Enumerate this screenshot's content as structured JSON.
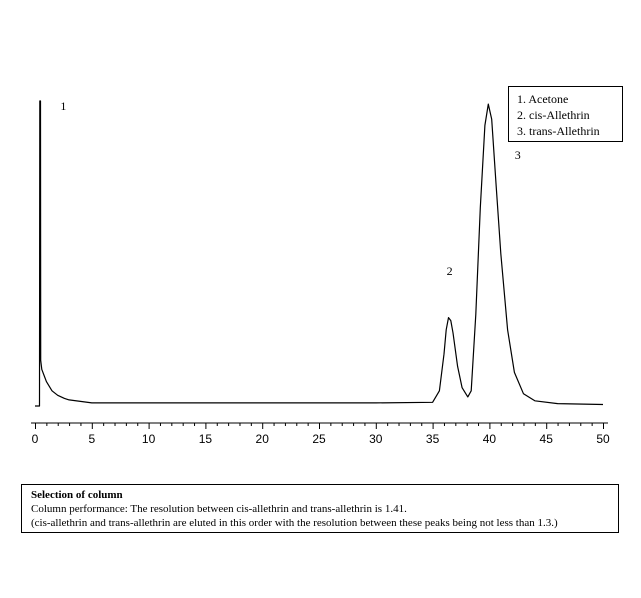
{
  "chart_data": {
    "type": "line",
    "title": "",
    "xlabel": "",
    "ylabel": "",
    "xlim": [
      0,
      50
    ],
    "ylim": [
      0,
      1
    ],
    "x_ticks": [
      0,
      5,
      10,
      15,
      20,
      25,
      30,
      35,
      40,
      45,
      50
    ],
    "grid": false,
    "series": [
      {
        "values": [
          [
            0.0,
            0.0
          ],
          [
            0.4,
            0.0
          ],
          [
            0.42,
            1.0
          ],
          [
            0.48,
            1.0
          ],
          [
            0.5,
            0.15
          ],
          [
            0.6,
            0.12
          ],
          [
            0.8,
            0.1
          ],
          [
            1.0,
            0.08
          ],
          [
            1.5,
            0.05
          ],
          [
            2.0,
            0.035
          ],
          [
            2.6,
            0.025
          ],
          [
            3.0,
            0.02
          ],
          [
            5.0,
            0.01
          ],
          [
            10.0,
            0.01
          ],
          [
            20.0,
            0.01
          ],
          [
            30.0,
            0.01
          ],
          [
            35.0,
            0.012
          ],
          [
            35.6,
            0.05
          ],
          [
            36.0,
            0.17
          ],
          [
            36.2,
            0.25
          ],
          [
            36.4,
            0.29
          ],
          [
            36.6,
            0.28
          ],
          [
            36.8,
            0.24
          ],
          [
            37.2,
            0.13
          ],
          [
            37.6,
            0.06
          ],
          [
            38.1,
            0.03
          ],
          [
            38.4,
            0.05
          ],
          [
            38.8,
            0.3
          ],
          [
            39.2,
            0.65
          ],
          [
            39.6,
            0.92
          ],
          [
            39.9,
            0.99
          ],
          [
            40.2,
            0.94
          ],
          [
            40.6,
            0.72
          ],
          [
            41.0,
            0.5
          ],
          [
            41.6,
            0.25
          ],
          [
            42.2,
            0.11
          ],
          [
            43.0,
            0.04
          ],
          [
            44.0,
            0.017
          ],
          [
            46.0,
            0.008
          ],
          [
            50.0,
            0.005
          ]
        ]
      }
    ],
    "peak_labels": [
      {
        "text": "1",
        "x": 2.5,
        "y": 0.97
      },
      {
        "text": "2",
        "x": 36.5,
        "y": 0.43
      },
      {
        "text": "3",
        "x": 42.5,
        "y": 0.81
      }
    ]
  },
  "legend": [
    "1. Acetone",
    "2. cis-Allethrin",
    "3. trans-Allethrin"
  ],
  "info": {
    "title": "Selection of column",
    "line1": "Column performance: The resolution between cis-allethrin and trans-allethrin is 1.41.",
    "line2": "(cis-allethrin and trans-allethrin are eluted in this order with the resolution between these peaks being not less than 1.3.)"
  }
}
